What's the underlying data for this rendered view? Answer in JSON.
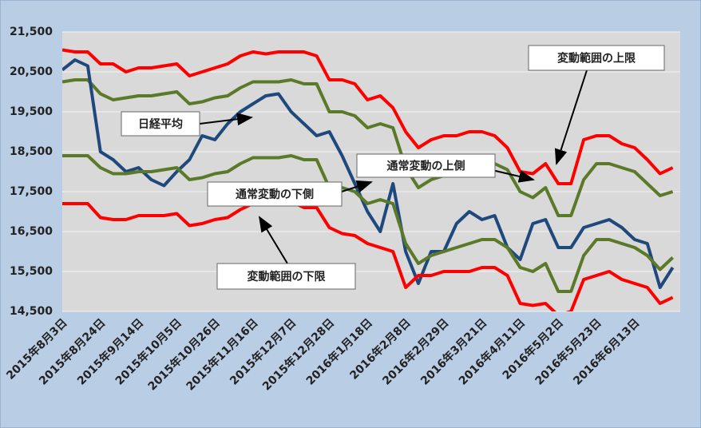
{
  "chart_data": {
    "type": "line",
    "categories": [
      "2015年8月3日",
      null,
      null,
      "2015年8月24日",
      null,
      null,
      "2015年9月14日",
      null,
      null,
      "2015年10月5日",
      null,
      null,
      "2015年10月26日",
      null,
      null,
      "2015年11月16日",
      null,
      null,
      "2015年12月7日",
      null,
      null,
      "2015年12月28日",
      null,
      null,
      "2016年1月18日",
      null,
      null,
      "2016年2月8日",
      null,
      null,
      "2016年2月29日",
      null,
      null,
      "2016年3月21日",
      null,
      null,
      "2016年4月11日",
      null,
      null,
      "2016年5月2日",
      null,
      null,
      "2016年5月23日",
      null,
      null,
      "2016年6月13日",
      null,
      null,
      null
    ],
    "series": [
      {
        "name": "変動範囲の上限",
        "color": "#ff0000",
        "values": [
          21050,
          21000,
          21000,
          20700,
          20700,
          20500,
          20600,
          20600,
          20650,
          20700,
          20400,
          20500,
          20600,
          20700,
          20900,
          21000,
          20950,
          21000,
          21000,
          21000,
          20900,
          20300,
          20300,
          20200,
          19800,
          19900,
          19600,
          19000,
          18600,
          18800,
          18900,
          18900,
          19000,
          19000,
          18900,
          18600,
          18000,
          17950,
          18200,
          17700,
          17700,
          18800,
          18900,
          18900,
          18700,
          18600,
          18300,
          17950,
          18100
        ]
      },
      {
        "name": "通常変動の上側",
        "color": "#5a7a2a",
        "values": [
          20250,
          20300,
          20300,
          19950,
          19800,
          19850,
          19900,
          19900,
          19950,
          20000,
          19700,
          19750,
          19850,
          19900,
          20100,
          20250,
          20250,
          20250,
          20300,
          20200,
          20200,
          19500,
          19500,
          19400,
          19100,
          19200,
          19100,
          18100,
          17600,
          17800,
          17900,
          18000,
          18100,
          18200,
          18200,
          18050,
          17500,
          17350,
          17600,
          16900,
          16900,
          17800,
          18200,
          18200,
          18100,
          18000,
          17700,
          17400,
          17500
        ]
      },
      {
        "name": "日経平均",
        "color": "#1f497d",
        "values": [
          20550,
          20800,
          20650,
          18500,
          18300,
          18000,
          18100,
          17800,
          17650,
          18000,
          18300,
          18900,
          18800,
          19200,
          19500,
          19700,
          19900,
          19950,
          19500,
          19200,
          18900,
          19000,
          18400,
          17700,
          17000,
          16500,
          17700,
          16000,
          15200,
          16000,
          16000,
          16700,
          17000,
          16800,
          16900,
          16100,
          15800,
          16700,
          16800,
          16100,
          16100,
          16600,
          16700,
          16800,
          16600,
          16300,
          16200,
          15100,
          15600
        ]
      },
      {
        "name": "通常変動の下側",
        "color": "#5a7a2a",
        "values": [
          18400,
          18400,
          18400,
          18100,
          17950,
          17950,
          18000,
          18000,
          18050,
          18100,
          17800,
          17850,
          17950,
          18000,
          18200,
          18350,
          18350,
          18350,
          18400,
          18300,
          18300,
          17600,
          17600,
          17500,
          17200,
          17300,
          17200,
          16200,
          15700,
          15900,
          16000,
          16100,
          16200,
          16300,
          16300,
          16100,
          15600,
          15500,
          15700,
          15000,
          15000,
          15900,
          16300,
          16300,
          16200,
          16100,
          15900,
          15550,
          15850
        ]
      },
      {
        "name": "変動範囲の下限",
        "color": "#ff0000",
        "values": [
          17200,
          17200,
          17200,
          16850,
          16800,
          16800,
          16900,
          16900,
          16900,
          16950,
          16650,
          16700,
          16800,
          16850,
          17050,
          17200,
          17200,
          17200,
          17250,
          17100,
          17100,
          16600,
          16450,
          16400,
          16200,
          16100,
          16000,
          15100,
          15400,
          15400,
          15500,
          15500,
          15500,
          15600,
          15600,
          15400,
          14700,
          14650,
          14700,
          14400,
          14500,
          15300,
          15400,
          15500,
          15300,
          15200,
          15100,
          14700,
          14850
        ]
      }
    ],
    "ylim": [
      14500,
      21500
    ],
    "yticks": [
      {
        "value": 14500,
        "label": "14,500"
      },
      {
        "value": 15500,
        "label": "15,500"
      },
      {
        "value": 16500,
        "label": "16,500"
      },
      {
        "value": 17500,
        "label": "17,500"
      },
      {
        "value": 18500,
        "label": "18,500"
      },
      {
        "value": 19500,
        "label": "19,500"
      },
      {
        "value": 20500,
        "label": "20,500"
      },
      {
        "value": 21500,
        "label": "21,500"
      }
    ],
    "grid": true
  }
}
